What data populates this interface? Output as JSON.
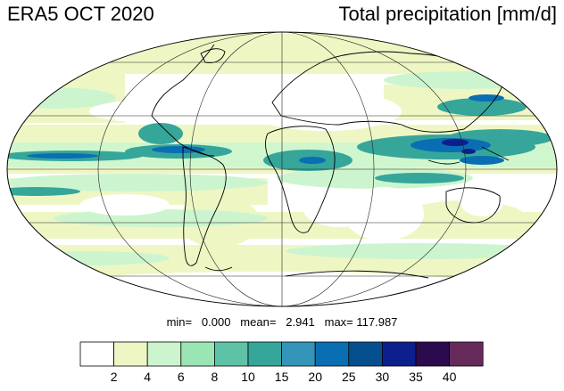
{
  "header": {
    "left_title": "ERA5 OCT 2020",
    "right_title": "Total precipitation [mm/d]"
  },
  "stats": {
    "text": "min=   0.000   mean=   2.941   max= 117.987"
  },
  "colorbar": {
    "colors": [
      "#ffffff",
      "#eef7c4",
      "#ccf5cf",
      "#99e6b4",
      "#5ec2a6",
      "#36a69b",
      "#3495b8",
      "#0a6eb3",
      "#064f8f",
      "#0d1f8c",
      "#2b0b4d",
      "#662a5a"
    ],
    "tick_labels": [
      "2",
      "4",
      "6",
      "8",
      "10",
      "15",
      "20",
      "25",
      "30",
      "35",
      "40"
    ]
  },
  "map": {
    "projection": "mollweide",
    "ocean_color": "#ffffff",
    "light_precip_color": "#eef7c4",
    "medium_precip_color": "#ccf5cf",
    "heavy_precip_color": "#36a69b",
    "very_heavy_precip_color": "#0a6eb3",
    "extreme_precip_color": "#0d1f8c",
    "coastline_color": "#000000",
    "grid_color": "#222222"
  }
}
